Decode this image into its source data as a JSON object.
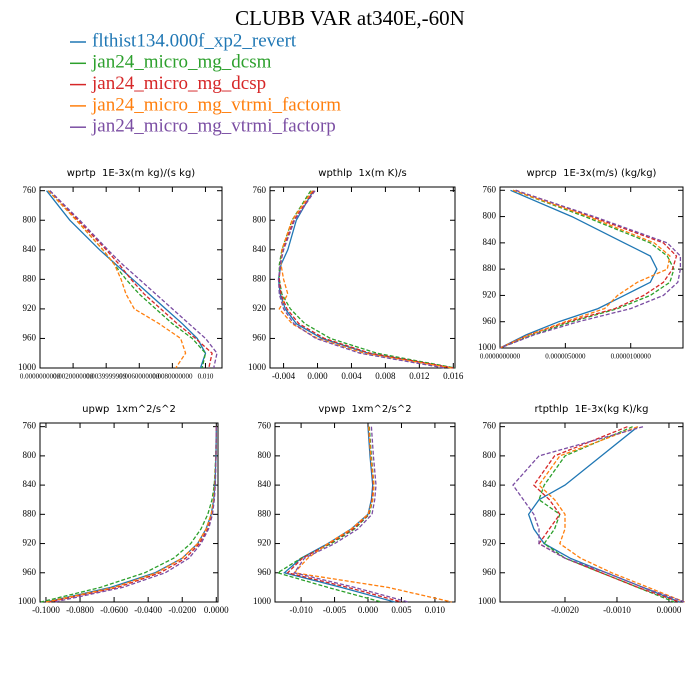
{
  "title": "CLUBB VAR at340E,-60N",
  "legend": [
    {
      "name": "flthist134.000f_xp2_revert",
      "color": "#1f77b4"
    },
    {
      "name": "jan24_micro_mg_dcsm",
      "color": "#2ca02c"
    },
    {
      "name": "jan24_micro_mg_dcsp",
      "color": "#d62728"
    },
    {
      "name": "jan24_micro_mg_vtrmi_factorm",
      "color": "#ff7f0e"
    },
    {
      "name": "jan24_micro_mg_vtrmi_factorp",
      "color": "#7b4ea3"
    }
  ],
  "chart_data": [
    {
      "type": "line",
      "title": "wprtp  1E-3x(m kg)/(s kg)",
      "y": [
        760,
        800,
        840,
        860,
        880,
        900,
        920,
        940,
        960,
        980,
        1000
      ],
      "xlim": [
        0,
        0.011
      ],
      "xticks": [
        {
          "value": 0,
          "label": "0.0000000000"
        },
        {
          "value": 0.002,
          "label": "0.0020000000"
        },
        {
          "value": 0.004,
          "label": "0.0039999999"
        },
        {
          "value": 0.006,
          "label": "0.0060000000"
        },
        {
          "value": 0.008,
          "label": "0.0080000000"
        },
        {
          "value": 0.01,
          "label": "0.010"
        }
      ],
      "ylim": [
        755,
        1000
      ],
      "y_reversed": true,
      "yticks": [
        760,
        800,
        840,
        880,
        920,
        960,
        1000
      ],
      "series": [
        {
          "values": [
            0.0004,
            0.0018,
            0.0036,
            0.0046,
            0.0056,
            0.0066,
            0.0076,
            0.0086,
            0.0095,
            0.01,
            0.0097
          ]
        },
        {
          "values": [
            0.0005,
            0.0022,
            0.0038,
            0.0045,
            0.0052,
            0.006,
            0.007,
            0.008,
            0.0092,
            0.01,
            0.0098
          ]
        },
        {
          "values": [
            0.0006,
            0.0023,
            0.004,
            0.0048,
            0.0055,
            0.0063,
            0.0073,
            0.0083,
            0.0094,
            0.0104,
            0.0102
          ]
        },
        {
          "values": [
            0.0005,
            0.0022,
            0.0038,
            0.0045,
            0.0049,
            0.0052,
            0.0057,
            0.0072,
            0.0085,
            0.0088,
            0.0082
          ]
        },
        {
          "values": [
            0.0006,
            0.0024,
            0.0041,
            0.005,
            0.006,
            0.007,
            0.008,
            0.009,
            0.01,
            0.0107,
            0.0105
          ]
        }
      ]
    },
    {
      "type": "line",
      "title": "wpthlp  1x(m K)/s",
      "y": [
        760,
        800,
        840,
        860,
        880,
        900,
        920,
        940,
        960,
        980,
        1000
      ],
      "xlim": [
        -0.0056,
        0.0162
      ],
      "xticks": [
        {
          "value": -0.004,
          "label": "-0.004"
        },
        {
          "value": 0,
          "label": "0.000"
        },
        {
          "value": 0.004,
          "label": "0.004"
        },
        {
          "value": 0.008,
          "label": "0.008"
        },
        {
          "value": 0.012,
          "label": "0.012"
        },
        {
          "value": 0.016,
          "label": "0.016"
        }
      ],
      "ylim": [
        755,
        1000
      ],
      "y_reversed": true,
      "yticks": [
        760,
        800,
        840,
        880,
        920,
        960,
        1000
      ],
      "series": [
        {
          "values": [
            -0.0005,
            -0.0025,
            -0.0035,
            -0.0043,
            -0.0046,
            -0.0044,
            -0.0038,
            -0.0025,
            0.0005,
            0.006,
            0.016
          ]
        },
        {
          "values": [
            -0.0008,
            -0.003,
            -0.0042,
            -0.0045,
            -0.0045,
            -0.0042,
            -0.0032,
            -0.0015,
            0.0015,
            0.007,
            0.0162
          ]
        },
        {
          "values": [
            -0.0004,
            -0.0028,
            -0.0041,
            -0.0044,
            -0.0045,
            -0.0043,
            -0.0036,
            -0.0022,
            0.0008,
            0.0062,
            0.016
          ]
        },
        {
          "values": [
            -0.0006,
            -0.003,
            -0.0042,
            -0.0043,
            -0.004,
            -0.0035,
            -0.0045,
            -0.003,
            0.0,
            0.0055,
            0.0158
          ]
        },
        {
          "values": [
            -0.0003,
            -0.0027,
            -0.004,
            -0.0044,
            -0.0046,
            -0.0045,
            -0.004,
            -0.0028,
            -0.0002,
            0.005,
            0.015
          ]
        }
      ]
    },
    {
      "type": "line",
      "title": "wprcp  1E-3x(m/s) (kg/kg)",
      "y": [
        760,
        800,
        840,
        860,
        880,
        900,
        920,
        940,
        960,
        980,
        1000
      ],
      "xlim": [
        0,
        1.4e-05
      ],
      "xticks": [
        {
          "value": 0,
          "label": "0.0000000000"
        },
        {
          "value": 5e-06,
          "label": "0.0000050000"
        },
        {
          "value": 1e-05,
          "label": "0.0000100000"
        }
      ],
      "ylim": [
        755,
        1000
      ],
      "y_reversed": true,
      "yticks": [
        760,
        800,
        840,
        880,
        920,
        960,
        1000
      ],
      "series": [
        {
          "values": [
            8e-07,
            5.5e-06,
            9.5e-06,
            1.15e-05,
            1.2e-05,
            1.15e-05,
            9.5e-06,
            7.5e-06,
            4.5e-06,
            2e-06,
            0
          ]
        },
        {
          "values": [
            1e-06,
            6.5e-06,
            1.15e-05,
            1.28e-05,
            1.33e-05,
            1.3e-05,
            1.15e-05,
            9e-06,
            5.5e-06,
            2.5e-06,
            0
          ]
        },
        {
          "values": [
            1.2e-06,
            7e-06,
            1.25e-05,
            1.35e-05,
            1.32e-05,
            1.25e-05,
            1.1e-05,
            8.8e-06,
            5.2e-06,
            2.2e-06,
            0
          ]
        },
        {
          "values": [
            1e-06,
            6.8e-06,
            1.18e-05,
            1.3e-05,
            1.28e-05,
            1.05e-05,
            9e-06,
            8e-06,
            5e-06,
            2.2e-06,
            0
          ]
        },
        {
          "values": [
            1.2e-06,
            7.2e-06,
            1.28e-05,
            1.38e-05,
            1.38e-05,
            1.36e-05,
            1.25e-05,
            1e-05,
            6e-06,
            2.6e-06,
            0
          ]
        }
      ]
    },
    {
      "type": "line",
      "title": "upwp  1xm^2/s^2",
      "y": [
        760,
        800,
        840,
        860,
        880,
        900,
        920,
        940,
        960,
        980,
        1000
      ],
      "xlim": [
        -0.1035,
        0.001
      ],
      "xticks": [
        {
          "value": -0.1,
          "label": "-0.1000"
        },
        {
          "value": -0.08,
          "label": "-0.0800"
        },
        {
          "value": -0.06,
          "label": "-0.0600"
        },
        {
          "value": -0.04,
          "label": "-0.0400"
        },
        {
          "value": -0.02,
          "label": "-0.0200"
        },
        {
          "value": 0,
          "label": "0.0000"
        }
      ],
      "ylim": [
        755,
        1000
      ],
      "y_reversed": true,
      "yticks": [
        760,
        800,
        840,
        880,
        920,
        960,
        1000
      ],
      "series": [
        {
          "values": [
            0,
            -0.0002,
            -0.0008,
            -0.0015,
            -0.003,
            -0.006,
            -0.011,
            -0.02,
            -0.036,
            -0.062,
            -0.1
          ]
        },
        {
          "values": [
            0,
            -0.0003,
            -0.0012,
            -0.0025,
            -0.005,
            -0.009,
            -0.015,
            -0.025,
            -0.042,
            -0.068,
            -0.103
          ]
        },
        {
          "values": [
            0,
            -0.0002,
            -0.0007,
            -0.0013,
            -0.0025,
            -0.005,
            -0.01,
            -0.018,
            -0.033,
            -0.058,
            -0.098
          ]
        },
        {
          "values": [
            0,
            -0.0002,
            -0.0008,
            -0.0016,
            -0.003,
            -0.006,
            -0.011,
            -0.02,
            -0.035,
            -0.06,
            -0.1
          ]
        },
        {
          "values": [
            0,
            -0.0002,
            -0.0006,
            -0.0012,
            -0.0022,
            -0.0045,
            -0.009,
            -0.016,
            -0.03,
            -0.055,
            -0.095
          ]
        }
      ]
    },
    {
      "type": "line",
      "title": "vpwp  1xm^2/s^2",
      "y": [
        760,
        800,
        840,
        860,
        880,
        900,
        920,
        940,
        960,
        980,
        1000
      ],
      "xlim": [
        -0.0139,
        0.013
      ],
      "xticks": [
        {
          "value": -0.01,
          "label": "-0.010"
        },
        {
          "value": -0.005,
          "label": "-0.005"
        },
        {
          "value": 0,
          "label": "0.000"
        },
        {
          "value": 0.005,
          "label": "0.005"
        },
        {
          "value": 0.01,
          "label": "0.010"
        }
      ],
      "ylim": [
        755,
        1000
      ],
      "y_reversed": true,
      "yticks": [
        760,
        800,
        840,
        880,
        920,
        960,
        1000
      ],
      "series": [
        {
          "values": [
            0,
            0.0003,
            0.0007,
            0.0005,
            0,
            -0.0025,
            -0.006,
            -0.01,
            -0.0125,
            -0.004,
            0.004
          ]
        },
        {
          "values": [
            0.0002,
            0.0005,
            0.0009,
            0.0007,
            0.0002,
            -0.002,
            -0.0055,
            -0.01,
            -0.0135,
            -0.006,
            0.002
          ]
        },
        {
          "values": [
            0.0001,
            0.0004,
            0.0008,
            0.0006,
            0.0001,
            -0.0022,
            -0.0058,
            -0.0098,
            -0.012,
            -0.003,
            0.005
          ]
        },
        {
          "values": [
            0.0001,
            0.0004,
            0.0009,
            0.0007,
            0,
            -0.0025,
            -0.006,
            -0.009,
            -0.011,
            0.003,
            0.0125
          ]
        },
        {
          "values": [
            0.0005,
            0.0008,
            0.0012,
            0.001,
            0.0006,
            -0.0015,
            -0.005,
            -0.0095,
            -0.011,
            -0.002,
            0.006
          ]
        }
      ]
    },
    {
      "type": "line",
      "title": "rtpthlp  1E-3x(kg K)/kg",
      "y": [
        760,
        800,
        840,
        860,
        880,
        900,
        920,
        940,
        960,
        980,
        1000
      ],
      "xlim": [
        -0.00325,
        0.00027
      ],
      "xticks": [
        {
          "value": -0.002,
          "label": "-0.0020"
        },
        {
          "value": -0.001,
          "label": "-0.0010"
        },
        {
          "value": 0,
          "label": "0.0000"
        }
      ],
      "ylim": [
        755,
        1000
      ],
      "y_reversed": true,
      "yticks": [
        760,
        800,
        840,
        880,
        920,
        960,
        1000
      ],
      "series": [
        {
          "values": [
            -0.0006,
            -0.0013,
            -0.002,
            -0.0025,
            -0.0027,
            -0.0026,
            -0.0024,
            -0.0019,
            -0.0012,
            -0.0005,
            0.0002
          ]
        },
        {
          "values": [
            -0.0007,
            -0.002,
            -0.0024,
            -0.0025,
            -0.0021,
            -0.0022,
            -0.0024,
            -0.002,
            -0.0013,
            -0.0006,
            0.0001
          ]
        },
        {
          "values": [
            -0.0008,
            -0.0022,
            -0.0026,
            -0.0023,
            -0.0021,
            -0.0023,
            -0.0025,
            -0.002,
            -0.0013,
            -0.0006,
            0.0002
          ]
        },
        {
          "values": [
            -0.0006,
            -0.0021,
            -0.0025,
            -0.0022,
            -0.002,
            -0.002,
            -0.0021,
            -0.0017,
            -0.0011,
            -0.0004,
            0.0003
          ]
        },
        {
          "values": [
            -0.0005,
            -0.0025,
            -0.003,
            -0.0028,
            -0.0026,
            -0.0025,
            -0.0025,
            -0.002,
            -0.0012,
            -0.0005,
            0.0003
          ]
        }
      ]
    }
  ]
}
